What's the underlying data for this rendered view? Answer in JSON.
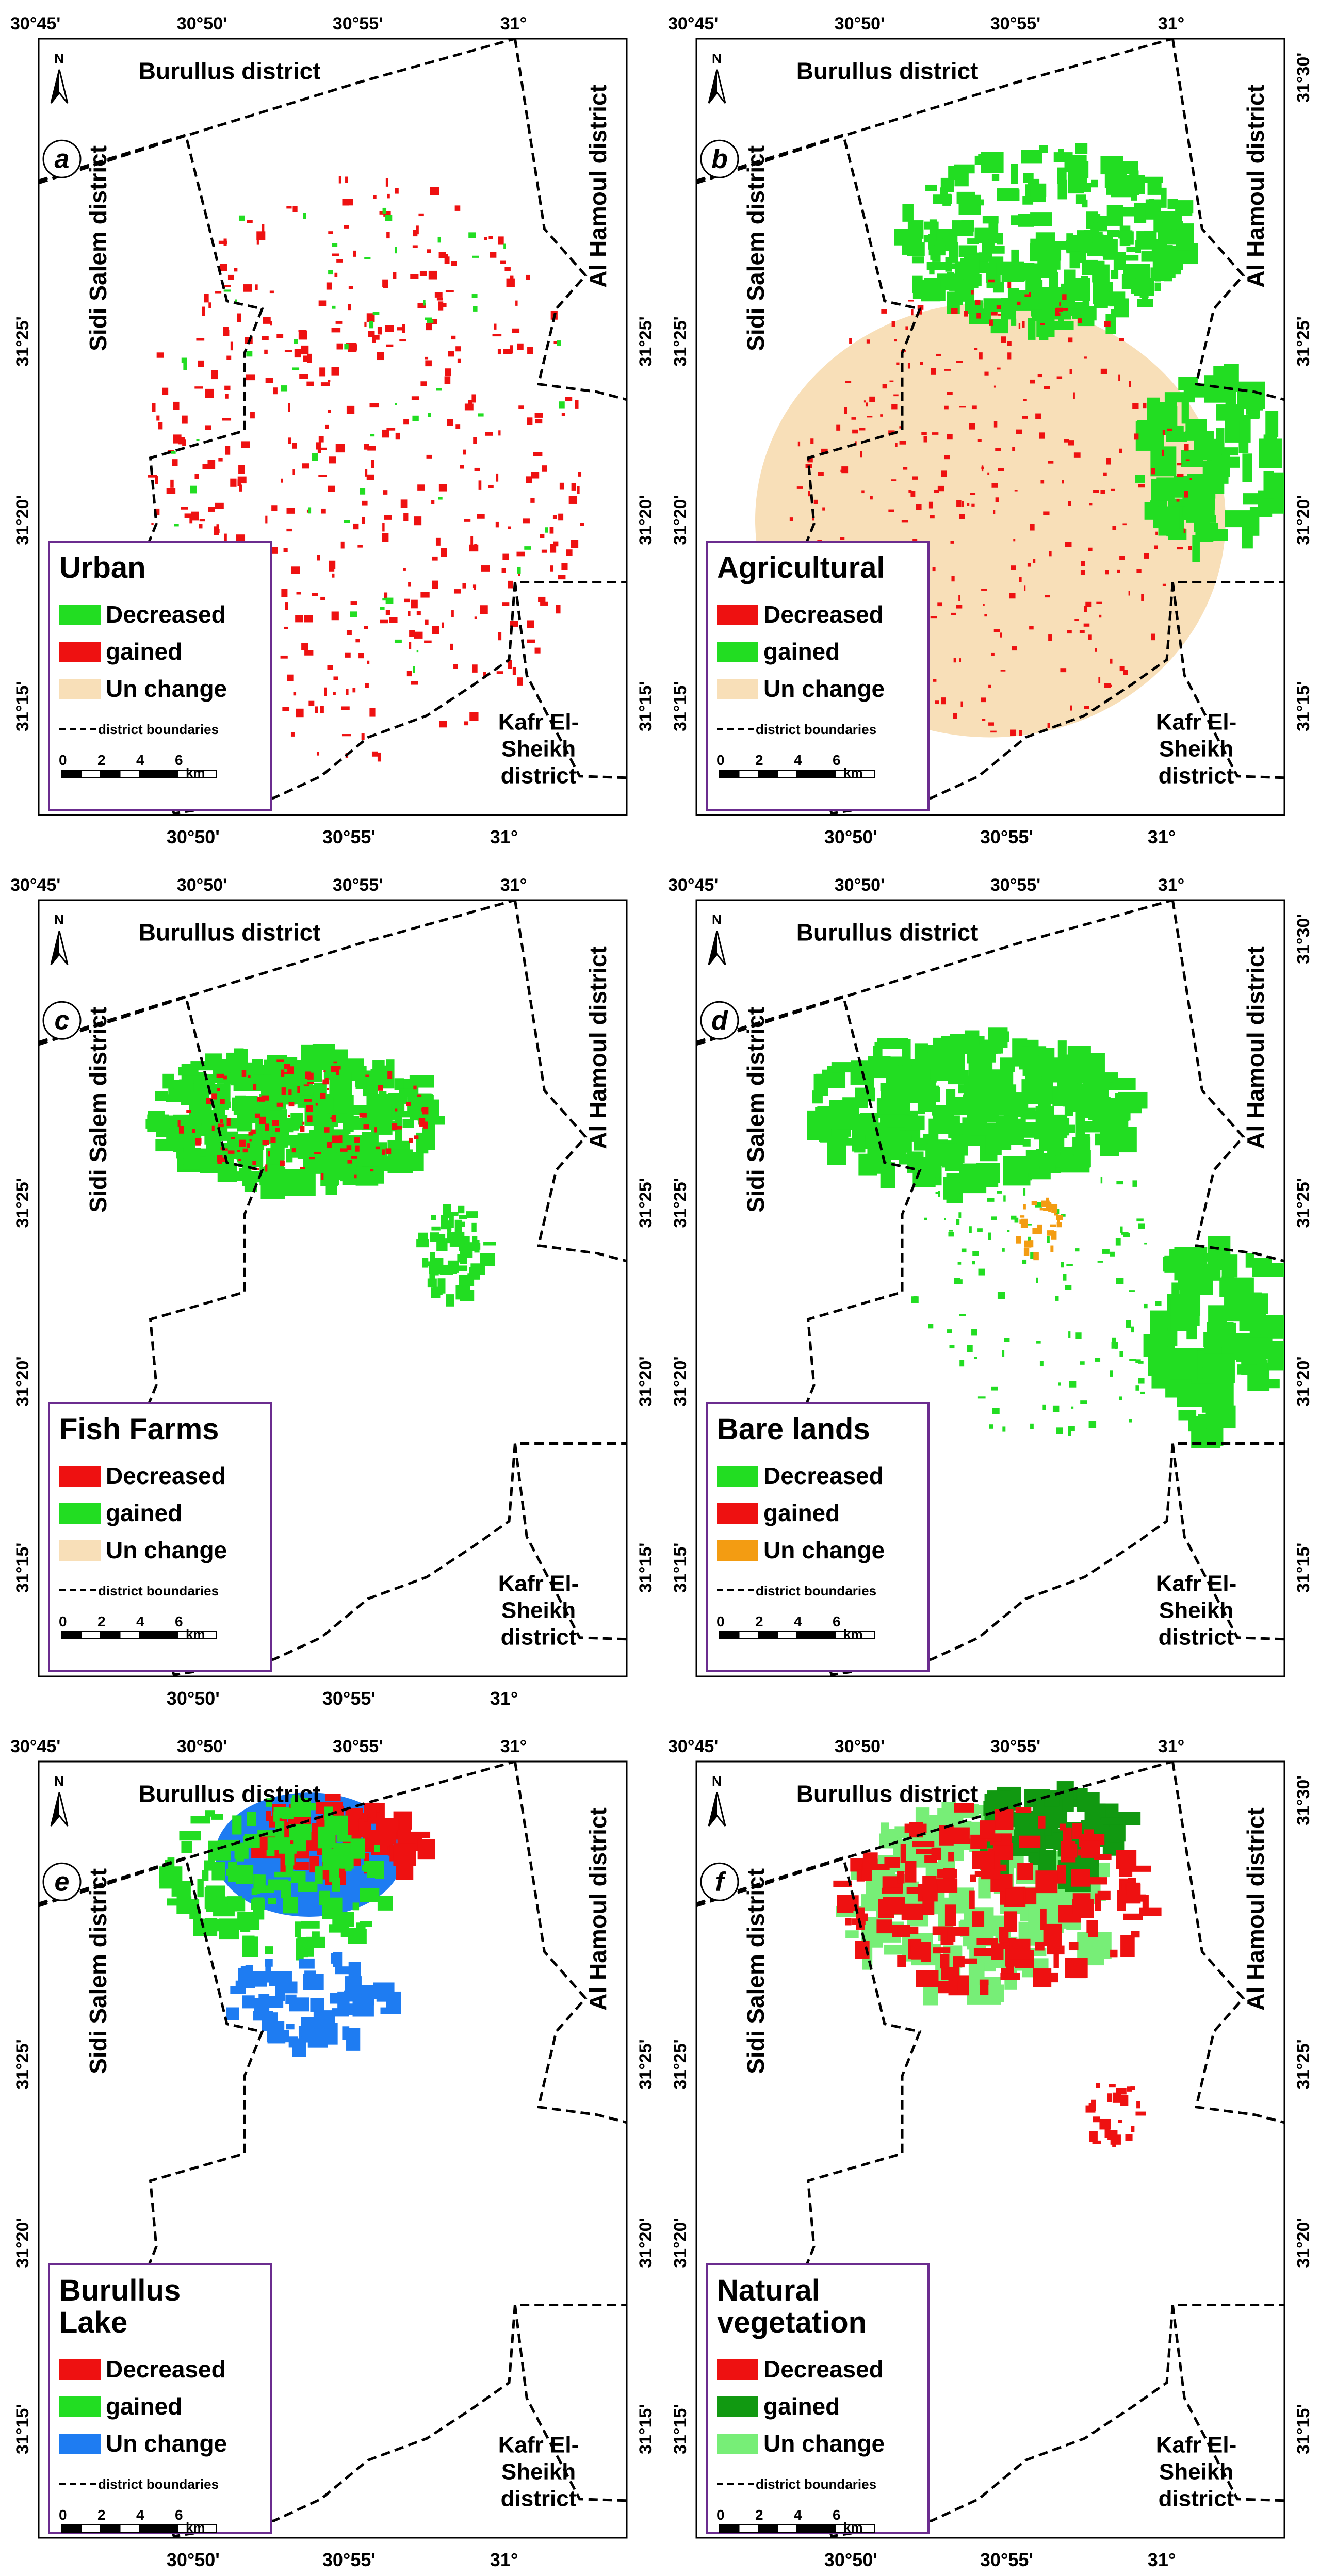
{
  "panels": [
    {
      "letter": "a",
      "legend_title": [
        "Urban"
      ],
      "legend_items": [
        {
          "label": "Decreased",
          "color": "#22dd22"
        },
        {
          "label": "gained",
          "color": "#ee1111"
        },
        {
          "label": "Un change",
          "color": "#f8dfb8"
        }
      ],
      "top_ticks": [
        "30°45'",
        "30°50'",
        "30°55'",
        "31°"
      ],
      "bottom_ticks": [
        "30°50'",
        "30°55'",
        "31°"
      ],
      "left_ticks": [
        "31°25'",
        "31°20'",
        "31°15'"
      ],
      "right_ticks": [
        "31°25'",
        "31°20'",
        "31°15'"
      ]
    },
    {
      "letter": "b",
      "legend_title": [
        "Agricultural"
      ],
      "legend_items": [
        {
          "label": "Decreased",
          "color": "#ee1111"
        },
        {
          "label": "gained",
          "color": "#22dd22"
        },
        {
          "label": "Un change",
          "color": "#f8dfb8"
        }
      ],
      "top_ticks": [
        "30°45'",
        "30°50'",
        "30°55'",
        "31°"
      ],
      "bottom_ticks": [
        "30°50'",
        "30°55'",
        "31°"
      ],
      "left_ticks": [
        "31°25'",
        "31°20'",
        "31°15'"
      ],
      "right_ticks": [
        "31°30'",
        "31°25'",
        "31°20'",
        "31°15'"
      ]
    },
    {
      "letter": "c",
      "legend_title": [
        "Fish Farms"
      ],
      "legend_items": [
        {
          "label": "Decreased",
          "color": "#ee1111"
        },
        {
          "label": "gained",
          "color": "#22dd22"
        },
        {
          "label": "Un change",
          "color": "#f8dfb8"
        }
      ],
      "top_ticks": [
        "30°45'",
        "30°50'",
        "30°55'",
        "31°"
      ],
      "bottom_ticks": [
        "30°50'",
        "30°55'",
        "31°"
      ],
      "left_ticks": [
        "31°25'",
        "31°20'",
        "31°15'"
      ],
      "right_ticks": [
        "31°25'",
        "31°20'",
        "31°15'"
      ]
    },
    {
      "letter": "d",
      "legend_title": [
        "Bare lands"
      ],
      "legend_items": [
        {
          "label": "Decreased",
          "color": "#22dd22"
        },
        {
          "label": "gained",
          "color": "#ee1111"
        },
        {
          "label": "Un change",
          "color": "#f39c12"
        }
      ],
      "top_ticks": [
        "30°45'",
        "30°50'",
        "30°55'",
        "31°"
      ],
      "bottom_ticks": [],
      "left_ticks": [
        "31°25'",
        "31°20'",
        "31°15'"
      ],
      "right_ticks": [
        "31°30'",
        "31°25'",
        "31°20'",
        "31°15'"
      ]
    },
    {
      "letter": "e",
      "legend_title": [
        "Burullus",
        "Lake"
      ],
      "legend_items": [
        {
          "label": "Decreased",
          "color": "#ee1111"
        },
        {
          "label": "gained",
          "color": "#22dd22"
        },
        {
          "label": "Un change",
          "color": "#1e7cf2"
        }
      ],
      "top_ticks": [
        "30°45'",
        "30°50'",
        "30°55'",
        "31°"
      ],
      "bottom_ticks": [
        "30°50'",
        "30°55'",
        "31°"
      ],
      "left_ticks": [
        "31°25'",
        "31°20'",
        "31°15'"
      ],
      "right_ticks": [
        "31°25'",
        "31°20'",
        "31°15'"
      ]
    },
    {
      "letter": "f",
      "legend_title": [
        "Natural",
        "vegetation"
      ],
      "legend_items": [
        {
          "label": "Decreased",
          "color": "#ee1111"
        },
        {
          "label": "gained",
          "color": "#119911"
        },
        {
          "label": "Un change",
          "color": "#77ee77"
        }
      ],
      "top_ticks": [
        "30°45'",
        "30°50'",
        "30°55'",
        "31°"
      ],
      "bottom_ticks": [
        "30°50'",
        "30°55'",
        "31°"
      ],
      "left_ticks": [
        "31°25'",
        "31°20'",
        "31°15'"
      ],
      "right_ticks": [
        "31°30'",
        "31°25'",
        "31°20'",
        "31°15'"
      ]
    }
  ],
  "district_labels": {
    "north": "Burullus district",
    "west": "Sidi Salem district",
    "east": "Al Hamoul district",
    "southeast": [
      "Kafr El-",
      "Sheikh",
      "district"
    ]
  },
  "legend_boundary_label": "district  boundaries",
  "scale_bar": {
    "ticks": [
      "0",
      "2",
      "4",
      "6"
    ],
    "unit": "km"
  },
  "north_arrow_label": "N"
}
